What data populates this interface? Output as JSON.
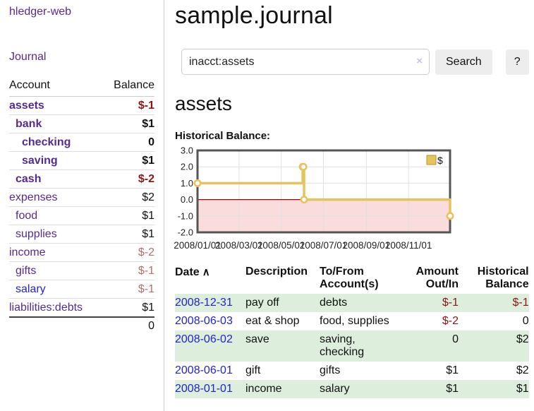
{
  "colors": {
    "link_purple": "#552a91",
    "link_blue": "#2323cc",
    "negative_strong": "#8e1515",
    "negative_light": "#b56e6e",
    "row_green": "#ddeedd",
    "chart_line": "#e6c35c"
  },
  "app": {
    "brand": "hledger-web"
  },
  "sidebar": {
    "journal_link": "Journal",
    "accounts_table": {
      "headers": {
        "account": "Account",
        "balance": "Balance"
      },
      "rows": [
        {
          "name": "assets",
          "balance": "$-1",
          "indent": 1,
          "emphasis": true,
          "negative": "strong"
        },
        {
          "name": "bank",
          "balance": "$1",
          "indent": 2,
          "emphasis": true
        },
        {
          "name": "checking",
          "balance": "0",
          "indent": 3,
          "emphasis": true
        },
        {
          "name": "saving",
          "balance": "$1",
          "indent": 3,
          "emphasis": true
        },
        {
          "name": "cash",
          "balance": "$-2",
          "indent": 2,
          "emphasis": true,
          "negative": "strong"
        },
        {
          "name": "expenses",
          "balance": "$2",
          "indent": 1
        },
        {
          "name": "food",
          "balance": "$1",
          "indent": 2
        },
        {
          "name": "supplies",
          "balance": "$1",
          "indent": 2
        },
        {
          "name": "income",
          "balance": "$-2",
          "indent": 1,
          "negative": "light"
        },
        {
          "name": "gifts",
          "balance": "$-1",
          "indent": 2,
          "negative": "light"
        },
        {
          "name": "salary",
          "balance": "$-1",
          "indent": 2,
          "negative": "light",
          "link_color": "blue"
        },
        {
          "name": "liabilities:debts",
          "balance": "$1",
          "indent": 1
        }
      ],
      "total": "0"
    }
  },
  "main": {
    "title": "sample.journal",
    "search": {
      "value": "inacct:assets",
      "clear_icon": "×",
      "button": "Search",
      "help_button": "?"
    },
    "account_heading": "assets",
    "register_table": {
      "sort_icon": "∧",
      "columns": [
        {
          "label": "Date",
          "sorted": true
        },
        {
          "label": "Description"
        },
        {
          "label": "To/From Account(s)"
        },
        {
          "label": "Amount Out/In",
          "align": "right"
        },
        {
          "label": "Historical Balance",
          "align": "right"
        }
      ],
      "rows": [
        {
          "date": "2008-12-31",
          "description": "pay off",
          "accounts": "debts",
          "amount": "$-1",
          "amount_negative": true,
          "balance": "$-1",
          "balance_negative": true
        },
        {
          "date": "2008-06-03",
          "description": "eat & shop",
          "accounts": "food, supplies",
          "amount": "$-2",
          "amount_negative": true,
          "balance": "0",
          "balance_negative": false
        },
        {
          "date": "2008-06-02",
          "description": "save",
          "accounts": "saving, checking",
          "amount": "0",
          "amount_negative": false,
          "balance": "$2",
          "balance_negative": false
        },
        {
          "date": "2008-06-01",
          "description": "gift",
          "accounts": "gifts",
          "amount": "$1",
          "amount_negative": false,
          "balance": "$2",
          "balance_negative": false
        },
        {
          "date": "2008-01-01",
          "description": "income",
          "accounts": "salary",
          "amount": "$1",
          "amount_negative": false,
          "balance": "$1",
          "balance_negative": false
        }
      ]
    }
  },
  "chart_data": {
    "type": "line",
    "title": "Historical Balance:",
    "style": "step-after",
    "series": [
      {
        "name": "$",
        "color": "#e6c35c",
        "points": [
          {
            "date": "2008-01-01",
            "value": 1
          },
          {
            "date": "2008-06-01",
            "value": 2
          },
          {
            "date": "2008-06-02",
            "value": 2
          },
          {
            "date": "2008-06-03",
            "value": 0
          },
          {
            "date": "2008-12-31",
            "value": -1
          }
        ]
      }
    ],
    "x_range": [
      "2008-01-01",
      "2008-12-31"
    ],
    "x_ticks": [
      "2008/01/01",
      "2008/03/01",
      "2008/05/01",
      "2008/07/01",
      "2008/09/01",
      "2008/11/01"
    ],
    "y_ticks": [
      3.0,
      2.0,
      1.0,
      0.0,
      -1.0,
      -2.0
    ],
    "ylim": [
      -2,
      3
    ],
    "grid": true,
    "legend": {
      "position": "top-right",
      "entries": [
        "$"
      ]
    },
    "negative_region_color": "#fadcdc",
    "zero_line_color": "#a40000"
  }
}
